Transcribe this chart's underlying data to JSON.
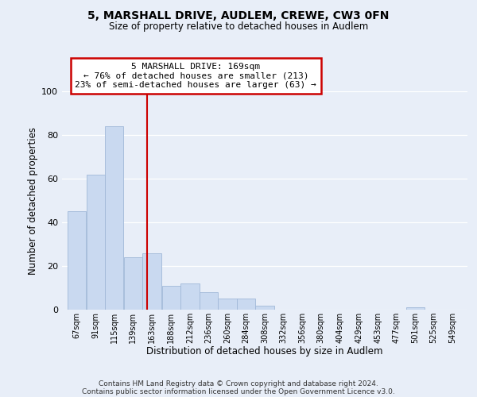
{
  "title": "5, MARSHALL DRIVE, AUDLEM, CREWE, CW3 0FN",
  "subtitle": "Size of property relative to detached houses in Audlem",
  "xlabel": "Distribution of detached houses by size in Audlem",
  "ylabel": "Number of detached properties",
  "bar_values": [
    45,
    62,
    84,
    24,
    26,
    11,
    12,
    8,
    5,
    5,
    2,
    0,
    0,
    0,
    0,
    0,
    0,
    0,
    1,
    0
  ],
  "bin_labels": [
    "67sqm",
    "91sqm",
    "115sqm",
    "139sqm",
    "163sqm",
    "188sqm",
    "212sqm",
    "236sqm",
    "260sqm",
    "284sqm",
    "308sqm",
    "332sqm",
    "356sqm",
    "380sqm",
    "404sqm",
    "429sqm",
    "453sqm",
    "477sqm",
    "501sqm",
    "525sqm",
    "549sqm"
  ],
  "bin_edges": [
    67,
    91,
    115,
    139,
    163,
    188,
    212,
    236,
    260,
    284,
    308,
    332,
    356,
    380,
    404,
    429,
    453,
    477,
    501,
    525,
    549
  ],
  "bar_color": "#c9d9f0",
  "bar_edge_color": "#a0b8d8",
  "vline_x": 169,
  "vline_color": "#cc0000",
  "ylim": [
    0,
    100
  ],
  "annotation_title": "5 MARSHALL DRIVE: 169sqm",
  "annotation_line1": "← 76% of detached houses are smaller (213)",
  "annotation_line2": "23% of semi-detached houses are larger (63) →",
  "annotation_box_color": "#ffffff",
  "annotation_box_edge": "#cc0000",
  "footer1": "Contains HM Land Registry data © Crown copyright and database right 2024.",
  "footer2": "Contains public sector information licensed under the Open Government Licence v3.0.",
  "background_color": "#e8eef8",
  "plot_bg_color": "#e8eef8",
  "grid_color": "#ffffff",
  "yticks": [
    0,
    20,
    40,
    60,
    80,
    100
  ]
}
